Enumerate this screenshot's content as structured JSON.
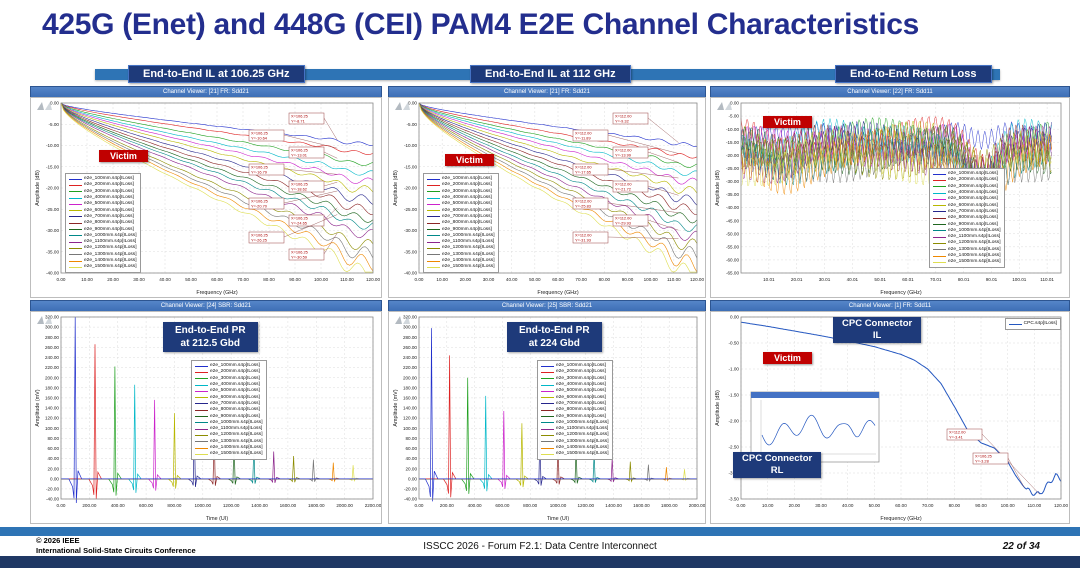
{
  "slide": {
    "title": "425G (Enet) and 448G (CEI) PAM4 E2E Channel Characteristics",
    "footer": {
      "left1": "© 2026 IEEE",
      "left2": "International Solid-State Circuits Conference",
      "center": "ISSCC 2026 - Forum F2.1: Data Centre Interconnect",
      "right": "22 of 34"
    }
  },
  "palette": [
    "#2230cc",
    "#dd2222",
    "#1fa01f",
    "#00b8c8",
    "#cc22cc",
    "#b8b800",
    "#26268c",
    "#8c2626",
    "#1f661f",
    "#008888",
    "#8c268c",
    "#8c8c00",
    "#777777",
    "#ee8800",
    "#dede50"
  ],
  "chart_data": [
    {
      "type": "line",
      "kind": "il",
      "chip": "End-to-End IL at 106.25 GHz",
      "viewer": "Channel Viewer: [21] FR: Sdd21",
      "victim": "Victim",
      "title": "End-to-End IL at 106.25 GHz",
      "xlabel": "Frequency (GHz)",
      "ylabel": "Amplitude (dB)",
      "xlim": [
        0,
        120
      ],
      "ylim": [
        -40,
        0
      ],
      "xticks": [
        0,
        10,
        20,
        30,
        40,
        50,
        60,
        70,
        80,
        90,
        100,
        110,
        120
      ],
      "xtick_labels": [
        "0.00",
        "10.00",
        "20.00",
        "30.00",
        "40.00",
        "50.00",
        "60.00",
        "70.00",
        "80.00",
        "90.00",
        "100.00",
        "110.00",
        "120.00"
      ],
      "yticks": [
        0,
        -5,
        -10,
        -15,
        -20,
        -25,
        -30,
        -35,
        -40
      ],
      "ytick_labels": [
        "0.00",
        "-5.00",
        "-10.00",
        "-15.00",
        "-20.00",
        "-25.00",
        "-30.00",
        "-35.00",
        "-40.00"
      ],
      "series": [
        "e2e_100mm.s4p[ILoss]",
        "e2e_200mm.s4p[ILoss]",
        "e2e_300mm.s4p[ILoss]",
        "e2e_400mm.s4p[ILoss]",
        "e2e_500mm.s4p[ILoss]",
        "e2e_600mm.s4p[ILoss]",
        "e2e_700mm.s4p[ILoss]",
        "e2e_800mm.s4p[ILoss]",
        "e2e_900mm.s4p[ILoss]",
        "e2e_1000mm.s4p[ILoss]",
        "e2e_1100mm.s4p[ILoss]",
        "e2e_1200mm.s4p[ILoss]",
        "e2e_1300mm.s4p[ILoss]",
        "e2e_1400mm.s4p[ILoss]",
        "e2e_1500mm.s4p[ILoss]"
      ],
      "marker_x": 106.25,
      "marker_values": [
        -8.71,
        -10.64,
        -13.01,
        -15.05,
        -16.79,
        -18.62,
        -20.7,
        -22.79,
        -24.65,
        -26.25,
        -28.1,
        -30.59,
        -32.4,
        -34.2,
        -36.1
      ],
      "annotations": [
        {
          "x": 106.25,
          "y": -8.71,
          "x_label": "X=106.25",
          "y_label": "Y=-8.71"
        },
        {
          "x": 106.25,
          "y": -10.64,
          "x_label": "X=106.25",
          "y_label": "Y=-10.64"
        },
        {
          "x": 106.25,
          "y": -13.01,
          "x_label": "X=106.25",
          "y_label": "Y=-13.01"
        },
        {
          "x": 106.25,
          "y": -16.79,
          "x_label": "X=106.25",
          "y_label": "Y=-16.79"
        },
        {
          "x": 106.25,
          "y": -18.62,
          "x_label": "X=106.25",
          "y_label": "Y=-18.62"
        },
        {
          "x": 106.25,
          "y": -20.7,
          "x_label": "X=106.25",
          "y_label": "Y=-20.70"
        },
        {
          "x": 106.25,
          "y": -24.65,
          "x_label": "X=106.25",
          "y_label": "Y=-24.65"
        },
        {
          "x": 106.25,
          "y": -26.25,
          "x_label": "X=106.25",
          "y_label": "Y=-26.25"
        },
        {
          "x": 106.25,
          "y": -30.59,
          "x_label": "X=106.25",
          "y_label": "Y=-30.59"
        }
      ]
    },
    {
      "type": "line",
      "kind": "il",
      "chip": "End-to-End IL at 112 GHz",
      "viewer": "Channel Viewer: [21] FR: Sdd21",
      "victim": "Victim",
      "title": "End-to-End IL at 112 GHz",
      "xlabel": "Frequency (GHz)",
      "ylabel": "Amplitude (dB)",
      "xlim": [
        0,
        120
      ],
      "ylim": [
        -40,
        0
      ],
      "xticks": [
        0,
        10,
        20,
        30,
        40,
        50,
        60,
        70,
        80,
        90,
        100,
        110,
        120
      ],
      "xtick_labels": [
        "0.00",
        "10.00",
        "20.00",
        "30.00",
        "40.00",
        "50.00",
        "60.00",
        "70.00",
        "80.00",
        "90.00",
        "100.00",
        "110.00",
        "120.00"
      ],
      "yticks": [
        0,
        -5,
        -10,
        -15,
        -20,
        -25,
        -30,
        -35,
        -40
      ],
      "ytick_labels": [
        "0.00",
        "-5.00",
        "-10.00",
        "-15.00",
        "-20.00",
        "-25.00",
        "-30.00",
        "-35.00",
        "-40.00"
      ],
      "series": [
        "e2e_100mm.s4p[ILoss]",
        "e2e_200mm.s4p[ILoss]",
        "e2e_300mm.s4p[ILoss]",
        "e2e_400mm.s4p[ILoss]",
        "e2e_500mm.s4p[ILoss]",
        "e2e_600mm.s4p[ILoss]",
        "e2e_700mm.s4p[ILoss]",
        "e2e_800mm.s4p[ILoss]",
        "e2e_900mm.s4p[ILoss]",
        "e2e_1000mm.s4p[ILoss]",
        "e2e_1100mm.s4p[ILoss]",
        "e2e_1200mm.s4p[ILoss]",
        "e2e_1300mm.s4p[ILoss]",
        "e2e_1400mm.s4p[ILoss]",
        "e2e_1500mm.s4p[ILoss]"
      ],
      "marker_x": 112,
      "marker_values": [
        -9.32,
        -11.89,
        -13.99,
        -15.8,
        -17.65,
        -19.7,
        -21.72,
        -23.8,
        -25.83,
        -27.9,
        -29.93,
        -31.93,
        -33.9,
        -35.9,
        -37.8
      ],
      "annotations": [
        {
          "x": 112,
          "y": -9.32,
          "x_label": "X=112.00",
          "y_label": "Y=-9.32"
        },
        {
          "x": 112,
          "y": -11.89,
          "x_label": "X=112.00",
          "y_label": "Y=-11.89"
        },
        {
          "x": 112,
          "y": -13.99,
          "x_label": "X=112.00",
          "y_label": "Y=-13.99"
        },
        {
          "x": 112,
          "y": -17.65,
          "x_label": "X=112.00",
          "y_label": "Y=-17.65"
        },
        {
          "x": 112,
          "y": -21.72,
          "x_label": "X=112.00",
          "y_label": "Y=-21.72"
        },
        {
          "x": 112,
          "y": -25.83,
          "x_label": "X=112.00",
          "y_label": "Y=-25.83"
        },
        {
          "x": 112,
          "y": -29.93,
          "x_label": "X=112.00",
          "y_label": "Y=-29.93"
        },
        {
          "x": 112,
          "y": -31.93,
          "x_label": "X=112.00",
          "y_label": "Y=-31.93"
        }
      ]
    },
    {
      "type": "line",
      "kind": "rl",
      "chip": "End-to-End Return Loss",
      "viewer": "Channel Viewer: [22] FR: Sdd11",
      "victim": "Victim",
      "title": "End-to-End Return Loss",
      "xlabel": "Frequency (GHz)",
      "ylabel": "Amplitude (dB)",
      "xlim": [
        0,
        115
      ],
      "ylim": [
        -65,
        0
      ],
      "xticks": [
        10.01,
        20.01,
        30.01,
        40.01,
        50.01,
        60.01,
        70.01,
        80.01,
        90.01,
        100.01,
        110.01
      ],
      "xtick_labels": [
        "10.01",
        "20.01",
        "30.01",
        "40.01",
        "50.01",
        "60.01",
        "70.01",
        "80.01",
        "90.01",
        "100.01",
        "110.01"
      ],
      "yticks": [
        0,
        -5,
        -10,
        -15,
        -20,
        -25,
        -30,
        -35,
        -40,
        -45,
        -50,
        -55,
        -60,
        -65
      ],
      "ytick_labels": [
        "0.00",
        "-5.00",
        "-10.00",
        "-15.00",
        "-20.00",
        "-25.00",
        "-30.00",
        "-35.00",
        "-40.00",
        "-45.00",
        "-50.00",
        "-55.00",
        "-60.00",
        "-65.00"
      ],
      "series": [
        "e2e_100mm.s4p[ILoss]",
        "e2e_200mm.s4p[ILoss]",
        "e2e_300mm.s4p[ILoss]",
        "e2e_400mm.s4p[ILoss]",
        "e2e_500mm.s4p[ILoss]",
        "e2e_600mm.s4p[ILoss]",
        "e2e_700mm.s4p[ILoss]",
        "e2e_800mm.s4p[ILoss]",
        "e2e_900mm.s4p[ILoss]",
        "e2e_1000mm.s4p[ILoss]",
        "e2e_1100mm.s4p[ILoss]",
        "e2e_1200mm.s4p[ILoss]",
        "e2e_1300mm.s4p[ILoss]",
        "e2e_1400mm.s4p[ILoss]",
        "e2e_1500mm.s4p[ILoss]"
      ]
    },
    {
      "type": "line",
      "kind": "pr",
      "chip_lines": [
        "End-to-End PR",
        "at 212.5 Gbd"
      ],
      "viewer": "Channel Viewer: [24] SBR: Sdd21",
      "title": "End-to-End PR at 212.5 Gbd",
      "xlabel": "Time (UI)",
      "ylabel": "Amplitude (mV)",
      "xlim": [
        0,
        2200
      ],
      "ylim": [
        -40,
        320
      ],
      "xticks": [
        0,
        200,
        400,
        600,
        800,
        1000,
        1200,
        1400,
        1600,
        1800,
        2000,
        2200
      ],
      "xtick_labels": [
        "0.00",
        "200.00",
        "400.00",
        "600.00",
        "800.00",
        "1000.00",
        "1200.00",
        "1400.00",
        "1600.00",
        "1800.00",
        "2000.00",
        "2200.00"
      ],
      "yticks": [
        320,
        300,
        280,
        260,
        240,
        220,
        200,
        180,
        160,
        140,
        120,
        100,
        80,
        60,
        40,
        20,
        0,
        -20,
        -40
      ],
      "ytick_labels": [
        "320.00",
        "300.00",
        "280.00",
        "260.00",
        "240.00",
        "220.00",
        "200.00",
        "180.00",
        "160.00",
        "140.00",
        "120.00",
        "100.00",
        "80.00",
        "60.00",
        "40.00",
        "20.00",
        "0.00",
        "-20.00",
        "-40.00"
      ],
      "series": [
        "e2e_100mm.s4p[ILoss]",
        "e2e_200mm.s4p[ILoss]",
        "e2e_300mm.s4p[ILoss]",
        "e2e_400mm.s4p[ILoss]",
        "e2e_500mm.s4p[ILoss]",
        "e2e_600mm.s4p[ILoss]",
        "e2e_700mm.s4p[ILoss]",
        "e2e_800mm.s4p[ILoss]",
        "e2e_900mm.s4p[ILoss]",
        "e2e_1000mm.s4p[ILoss]",
        "e2e_1100mm.s4p[ILoss]",
        "e2e_1200mm.s4p[ILoss]",
        "e2e_1300mm.s4p[ILoss]",
        "e2e_1400mm.s4p[ILoss]",
        "e2e_1500mm.s4p[ILoss]"
      ],
      "peaks": {
        "t": [
          100,
          240,
          380,
          520,
          660,
          800,
          940,
          1080,
          1220,
          1360,
          1500,
          1640,
          1780,
          1920,
          2060
        ],
        "a": [
          320,
          266,
          222,
          186,
          156,
          130,
          109,
          91,
          76,
          64,
          54,
          45,
          38,
          32,
          27
        ]
      }
    },
    {
      "type": "line",
      "kind": "pr",
      "chip_lines": [
        "End-to-End PR",
        "at 224 Gbd"
      ],
      "viewer": "Channel Viewer: [25] SBR: Sdd21",
      "title": "End-to-End PR at 224 Gbd",
      "xlabel": "Time (UI)",
      "ylabel": "Amplitude (mV)",
      "xlim": [
        0,
        2000
      ],
      "ylim": [
        -40,
        320
      ],
      "xticks": [
        0,
        200,
        400,
        600,
        800,
        1000,
        1200,
        1400,
        1600,
        1800,
        2000
      ],
      "xtick_labels": [
        "0.00",
        "200.00",
        "400.00",
        "600.00",
        "800.00",
        "1000.00",
        "1200.00",
        "1400.00",
        "1600.00",
        "1800.00",
        "2000.00"
      ],
      "yticks": [
        320,
        300,
        280,
        260,
        240,
        220,
        200,
        180,
        160,
        140,
        120,
        100,
        80,
        60,
        40,
        20,
        0,
        -20,
        -40
      ],
      "ytick_labels": [
        "320.00",
        "300.00",
        "280.00",
        "260.00",
        "240.00",
        "220.00",
        "200.00",
        "180.00",
        "160.00",
        "140.00",
        "120.00",
        "100.00",
        "80.00",
        "60.00",
        "40.00",
        "20.00",
        "0.00",
        "-20.00",
        "-40.00"
      ],
      "series": [
        "e2e_100mm.s4p[ILoss]",
        "e2e_200mm.s4p[ILoss]",
        "e2e_300mm.s4p[ILoss]",
        "e2e_400mm.s4p[ILoss]",
        "e2e_500mm.s4p[ILoss]",
        "e2e_600mm.s4p[ILoss]",
        "e2e_700mm.s4p[ILoss]",
        "e2e_800mm.s4p[ILoss]",
        "e2e_900mm.s4p[ILoss]",
        "e2e_1000mm.s4p[ILoss]",
        "e2e_1100mm.s4p[ILoss]",
        "e2e_1200mm.s4p[ILoss]",
        "e2e_1300mm.s4p[ILoss]",
        "e2e_1400mm.s4p[ILoss]",
        "e2e_1500mm.s4p[ILoss]"
      ],
      "peaks": {
        "t": [
          90,
          220,
          350,
          480,
          610,
          740,
          870,
          1000,
          1130,
          1260,
          1390,
          1520,
          1650,
          1780,
          1910
        ],
        "a": [
          298,
          244,
          200,
          164,
          134,
          110,
          90,
          74,
          61,
          50,
          41,
          34,
          28,
          23,
          19
        ]
      }
    },
    {
      "type": "line",
      "kind": "cpc",
      "viewer": "Channel Viewer: [1] FR: Sdd11",
      "victim": "Victim",
      "chip_il": [
        "CPC Connector",
        "IL"
      ],
      "chip_rl": [
        "CPC Connector",
        "RL"
      ],
      "title": "CPC Connector IL / RL",
      "xlabel": "Frequency (GHz)",
      "ylabel": "Amplitude (dB)",
      "xlim": [
        0,
        120
      ],
      "ylim": [
        -3.5,
        0
      ],
      "xticks": [
        0,
        10,
        20,
        30,
        40,
        50,
        60,
        70,
        80,
        90,
        100,
        110,
        120
      ],
      "xtick_labels": [
        "0.00",
        "10.00",
        "20.00",
        "30.00",
        "40.00",
        "50.00",
        "60.00",
        "70.00",
        "80.00",
        "90.00",
        "100.00",
        "110.00",
        "120.00"
      ],
      "yticks": [
        0,
        -0.5,
        -1,
        -1.5,
        -2,
        -2.5,
        -3,
        -3.5
      ],
      "ytick_labels": [
        "0.00",
        "-0.50",
        "-1.00",
        "-1.50",
        "-2.00",
        "-2.50",
        "-3.00",
        "-3.50"
      ],
      "series": [
        "CPC.s4p[ILoss]"
      ],
      "color": "#2457c0",
      "points": [
        [
          0,
          -0.1
        ],
        [
          10,
          -0.18
        ],
        [
          20,
          -0.27
        ],
        [
          30,
          -0.36
        ],
        [
          40,
          -0.46
        ],
        [
          50,
          -0.57
        ],
        [
          60,
          -0.72
        ],
        [
          65,
          -0.83
        ],
        [
          70,
          -1.0
        ],
        [
          75,
          -1.28
        ],
        [
          80,
          -1.72
        ],
        [
          85,
          -2.18
        ],
        [
          90,
          -2.42
        ],
        [
          95,
          -2.52
        ],
        [
          100,
          -2.78
        ],
        [
          103,
          -3.05
        ],
        [
          106.25,
          -3.28
        ],
        [
          109,
          -3.38
        ],
        [
          112,
          -3.41
        ],
        [
          115,
          -3.22
        ],
        [
          118,
          -3.05
        ],
        [
          120,
          -3.12
        ]
      ],
      "annotations": [
        {
          "x": 112,
          "y": -3.41,
          "x_label": "X=112.00",
          "y_label": "Y=-3.41"
        },
        {
          "x": 106.25,
          "y": -3.28,
          "x_label": "X=106.25",
          "y_label": "Y=-3.28"
        }
      ],
      "inset": true
    }
  ]
}
